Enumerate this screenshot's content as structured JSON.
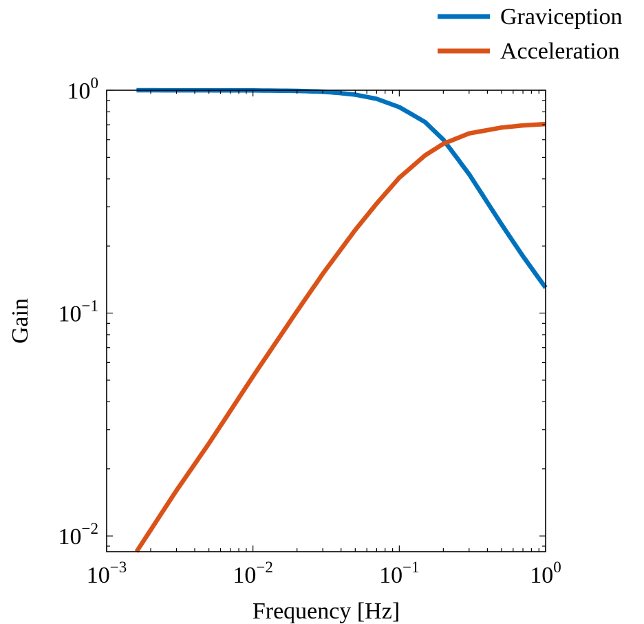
{
  "chart_data": {
    "type": "line",
    "xlabel": "Frequency [Hz]",
    "ylabel": "Gain",
    "xscale": "log",
    "yscale": "log",
    "xlim": [
      0.001,
      1
    ],
    "ylim": [
      0.0085,
      1
    ],
    "x_ticks": [
      {
        "base": "10",
        "exp": "−3",
        "value": 0.001
      },
      {
        "base": "10",
        "exp": "−2",
        "value": 0.01
      },
      {
        "base": "10",
        "exp": "−1",
        "value": 0.1
      },
      {
        "base": "10",
        "exp": "0",
        "value": 1
      }
    ],
    "y_ticks": [
      {
        "base": "10",
        "exp": "0",
        "value": 1
      },
      {
        "base": "10",
        "exp": "−1",
        "value": 0.1
      },
      {
        "base": "10",
        "exp": "−2",
        "value": 0.01
      }
    ],
    "grid": false,
    "legend_position": "top-right, above plot",
    "series": [
      {
        "name": "Graviception",
        "color": "#0072bd",
        "x": [
          0.0016,
          0.005,
          0.01,
          0.02,
          0.03,
          0.04,
          0.05,
          0.07,
          0.1,
          0.15,
          0.2,
          0.3,
          0.5,
          0.7,
          1.0
        ],
        "y": [
          1.0,
          0.999,
          0.998,
          0.993,
          0.985,
          0.97,
          0.955,
          0.915,
          0.84,
          0.72,
          0.6,
          0.42,
          0.25,
          0.18,
          0.13
        ]
      },
      {
        "name": "Acceleration",
        "color": "#d95319",
        "x": [
          0.0016,
          0.003,
          0.005,
          0.01,
          0.02,
          0.03,
          0.05,
          0.07,
          0.1,
          0.15,
          0.2,
          0.3,
          0.5,
          0.7,
          1.0
        ],
        "y": [
          0.0085,
          0.016,
          0.026,
          0.052,
          0.102,
          0.15,
          0.236,
          0.31,
          0.405,
          0.51,
          0.575,
          0.64,
          0.68,
          0.695,
          0.705
        ]
      }
    ]
  }
}
